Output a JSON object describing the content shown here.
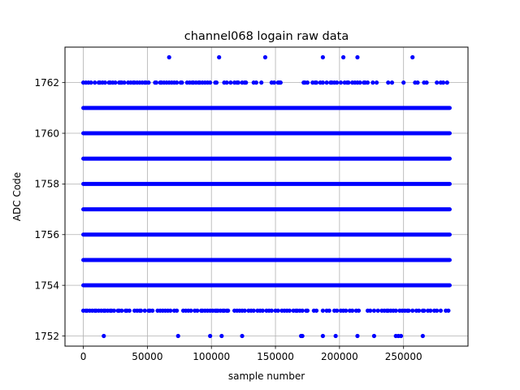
{
  "chart_data": {
    "type": "scatter",
    "title": "channel068 logain raw data",
    "xlabel": "sample number",
    "ylabel": "ADC Code",
    "xlim": [
      -14300,
      300300
    ],
    "ylim": [
      1751.6,
      1763.4
    ],
    "xticks": [
      0,
      50000,
      100000,
      150000,
      200000,
      250000
    ],
    "xtick_labels": [
      "0",
      "50000",
      "100000",
      "150000",
      "200000",
      "250000"
    ],
    "yticks": [
      1752,
      1754,
      1756,
      1758,
      1760,
      1762
    ],
    "ytick_labels": [
      "1752",
      "1754",
      "1756",
      "1758",
      "1760",
      "1762"
    ],
    "grid": true,
    "color": "#0000ff",
    "x_range": [
      0,
      286000
    ],
    "dense_levels": [
      1754,
      1755,
      1756,
      1757,
      1758,
      1759,
      1760,
      1761
    ],
    "sparse_levels": [
      {
        "y": 1762,
        "x": [
          0,
          2000,
          4000,
          6000,
          9000,
          12000,
          13000,
          15000,
          17000,
          20000,
          21000,
          23000,
          25000,
          28000,
          29000,
          30000,
          32000,
          35000,
          37000,
          39000,
          40000,
          42000,
          44000,
          46000,
          48000,
          49000,
          51000,
          56000,
          57000,
          60000,
          61000,
          63000,
          65000,
          67000,
          69000,
          71000,
          73000,
          76000,
          77000,
          81000,
          83000,
          85000,
          86000,
          88000,
          90000,
          91000,
          93000,
          95000,
          97000,
          99000,
          103000,
          104000,
          110000,
          112000,
          115000,
          118000,
          120000,
          121000,
          124000,
          126000,
          127000,
          133000,
          135000,
          139000,
          147000,
          149000,
          152000,
          153000,
          154000,
          172000,
          173000,
          175000,
          179000,
          181000,
          182000,
          185000,
          187000,
          190000,
          193000,
          194000,
          196000,
          198000,
          201000,
          204000,
          206000,
          207000,
          210000,
          212000,
          214000,
          216000,
          219000,
          220000,
          222000,
          226000,
          229000,
          238000,
          241000,
          250000,
          259000,
          261000,
          266000,
          268000,
          276000,
          279000,
          281000,
          284000
        ]
      },
      {
        "y": 1753,
        "x": [
          0,
          2000,
          3000,
          5000,
          7000,
          9000,
          10000,
          12000,
          14000,
          16000,
          17000,
          19000,
          21000,
          22000,
          24000,
          27000,
          28000,
          30000,
          33000,
          34000,
          36000,
          40000,
          42000,
          44000,
          45000,
          48000,
          51000,
          52000,
          54000,
          58000,
          60000,
          62000,
          64000,
          66000,
          68000,
          71000,
          73000,
          78000,
          80000,
          82000,
          84000,
          87000,
          89000,
          92000,
          93000,
          95000,
          97000,
          99000,
          101000,
          103000,
          104000,
          105000,
          107000,
          109000,
          110000,
          112000,
          113000,
          118000,
          120000,
          122000,
          124000,
          126000,
          129000,
          131000,
          133000,
          136000,
          138000,
          140000,
          143000,
          145000,
          147000,
          150000,
          152000,
          155000,
          157000,
          159000,
          161000,
          164000,
          166000,
          167000,
          169000,
          171000,
          174000,
          175000,
          180000,
          182000,
          187000,
          190000,
          192000,
          196000,
          198000,
          201000,
          203000,
          205000,
          208000,
          210000,
          213000,
          215000,
          222000,
          224000,
          227000,
          230000,
          233000,
          235000,
          237000,
          238000,
          240000,
          242000,
          244000,
          247000,
          249000,
          251000,
          253000,
          254000,
          257000,
          260000,
          262000,
          265000,
          266000,
          269000,
          271000,
          274000,
          276000,
          279000,
          283000,
          285000
        ]
      },
      {
        "y": 1763,
        "x": [
          67000,
          106000,
          142000,
          187000,
          203000,
          214000,
          257000
        ]
      },
      {
        "y": 1752,
        "x": [
          16000,
          74000,
          99000,
          108000,
          124000,
          170000,
          171000,
          187000,
          197000,
          214000,
          227000,
          244000,
          246000,
          248000,
          265000
        ]
      }
    ]
  }
}
